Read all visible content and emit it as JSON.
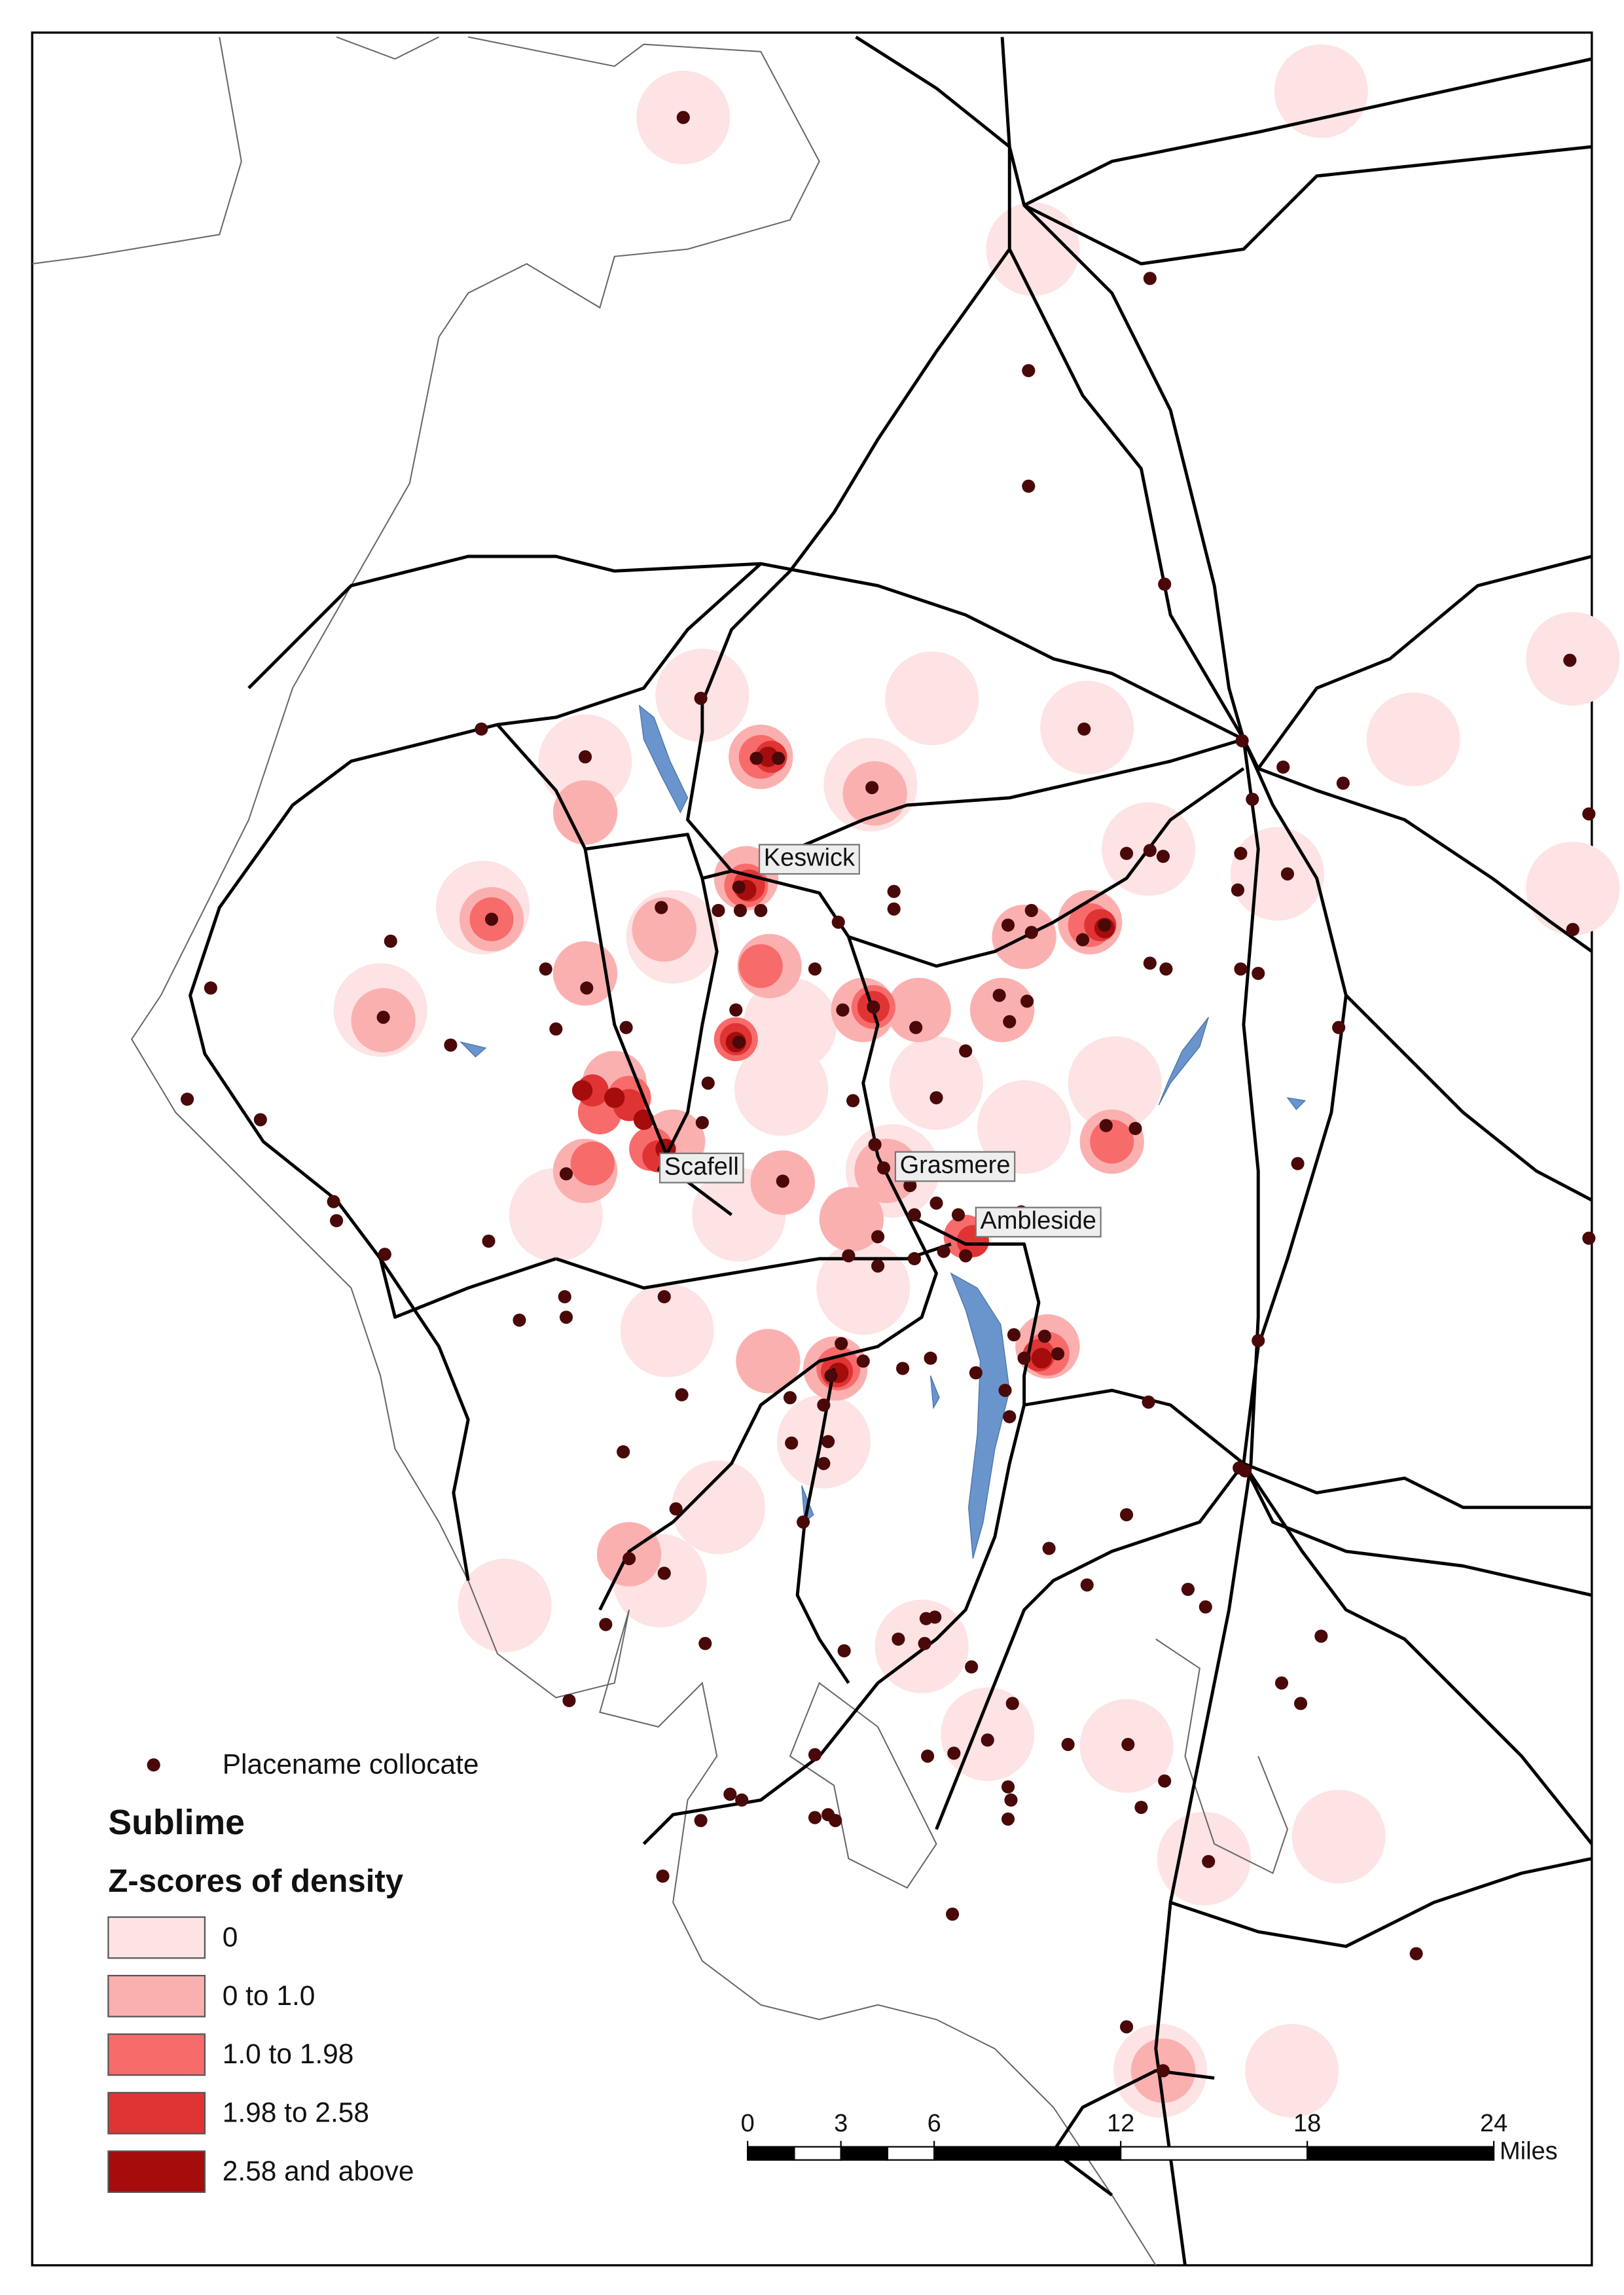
{
  "places": [
    {
      "label": "Keswick"
    },
    {
      "label": "Scafell"
    },
    {
      "label": "Grasmere"
    },
    {
      "label": "Ambleside"
    }
  ],
  "legend": {
    "marker_label": "Placename collocate",
    "title": "Sublime",
    "subtitle": "Z-scores of density",
    "classes": [
      {
        "label": "0",
        "color": "#fde3e3"
      },
      {
        "label": "0 to 1.0",
        "color": "#fbb0b0"
      },
      {
        "label": "1.0 to 1.98",
        "color": "#f86b6b"
      },
      {
        "label": "1.98 to 2.58",
        "color": "#e03434"
      },
      {
        "label": "2.58 and above",
        "color": "#a50c0c"
      }
    ]
  },
  "scale_bar": {
    "ticks": [
      0,
      3,
      6,
      12,
      18,
      24
    ],
    "unit": "Miles"
  }
}
